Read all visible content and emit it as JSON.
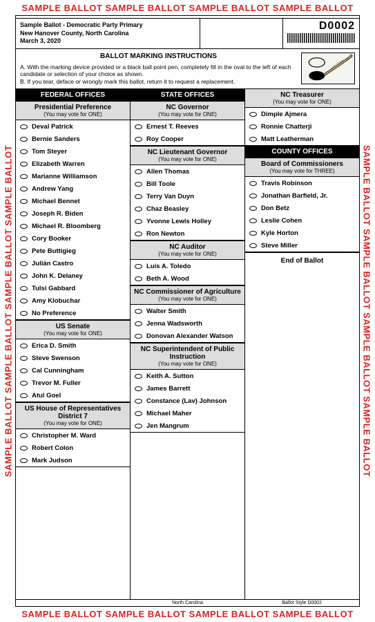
{
  "watermark": "SAMPLE BALLOT    SAMPLE BALLOT    SAMPLE BALLOT    SAMPLE BALLOT",
  "watermark_side": "SAMPLE  BALLOT        SAMPLE  BALLOT        SAMPLE  BALLOT        SAMPLE  BALLOT",
  "header": {
    "line1": "Sample Ballot - Democratic Party Primary",
    "line2": "New Hanover County, North Carolina",
    "line3": "March 3, 2020",
    "code": "D0002"
  },
  "instructions": {
    "title": "BALLOT MARKING INSTRUCTIONS",
    "a": "A. With the marking device provided or a black ball point pen, completely fill in the oval to the left of each candidate or selection of your choice as shown.",
    "b": "B. If you tear, deface or wrongly mark this ballot, return it to request a replacement."
  },
  "col1": {
    "header": "FEDERAL OFFICES",
    "races": [
      {
        "title": "Presidential Preference",
        "sub": "(You may vote for ONE)",
        "cands": [
          "Deval Patrick",
          "Bernie Sanders",
          "Tom Steyer",
          "Elizabeth Warren",
          "Marianne Williamson",
          "Andrew Yang",
          "Michael Bennet",
          "Joseph R. Biden",
          "Michael R. Bloomberg",
          "Cory Booker",
          "Pete Buttigieg",
          "Julián Castro",
          "John K. Delaney",
          "Tulsi Gabbard",
          "Amy Klobuchar",
          "No Preference"
        ]
      },
      {
        "title": "US Senate",
        "sub": "(You may vote for ONE)",
        "cands": [
          "Erica D. Smith",
          "Steve Swenson",
          "Cal Cunningham",
          "Trevor M. Fuller",
          "Atul Goel"
        ]
      },
      {
        "title": "US House of Representatives District 7",
        "sub": "(You may vote for ONE)",
        "cands": [
          "Christopher M. Ward",
          "Robert Colon",
          "Mark Judson"
        ]
      }
    ]
  },
  "col2": {
    "header": "STATE OFFICES",
    "races": [
      {
        "title": "NC Governor",
        "sub": "(You may vote for ONE)",
        "cands": [
          "Ernest T. Reeves",
          "Roy Cooper"
        ]
      },
      {
        "title": "NC Lieutenant Governor",
        "sub": "(You may vote for ONE)",
        "cands": [
          "Allen Thomas",
          "Bill Toole",
          "Terry Van Duyn",
          "Chaz Beasley",
          "Yvonne Lewis Holley",
          "Ron Newton"
        ]
      },
      {
        "title": "NC Auditor",
        "sub": "(You may vote for ONE)",
        "cands": [
          "Luis A. Toledo",
          "Beth A. Wood"
        ]
      },
      {
        "title": "NC Commissioner of Agriculture",
        "sub": "(You may vote for ONE)",
        "cands": [
          "Walter Smith",
          "Jenna Wadsworth",
          "Donovan Alexander Watson"
        ]
      },
      {
        "title": "NC Superintendent of Public Instruction",
        "sub": "(You may vote for ONE)",
        "cands": [
          "Keith A. Sutton",
          "James Barrett",
          "Constance (Lav) Johnson",
          "Michael Maher",
          "Jen Mangrum"
        ]
      }
    ]
  },
  "col3": {
    "races_a": [
      {
        "title": "NC Treasurer",
        "sub": "(You may vote for ONE)",
        "cands": [
          "Dimple Ajmera",
          "Ronnie Chatterji",
          "Matt Leatherman"
        ]
      }
    ],
    "header_b": "COUNTY OFFICES",
    "races_b": [
      {
        "title": "Board of Commissioners",
        "sub": "(You may vote for THREE)",
        "cands": [
          "Travis Robinson",
          "Jonathan Barfield, Jr.",
          "Don Betz",
          "Leslie Cohen",
          "Kyle Horton",
          "Steve Miller"
        ]
      }
    ],
    "end": "End of Ballot"
  },
  "footer": {
    "left": "North Carolina",
    "right": "Ballot Style D0002"
  }
}
